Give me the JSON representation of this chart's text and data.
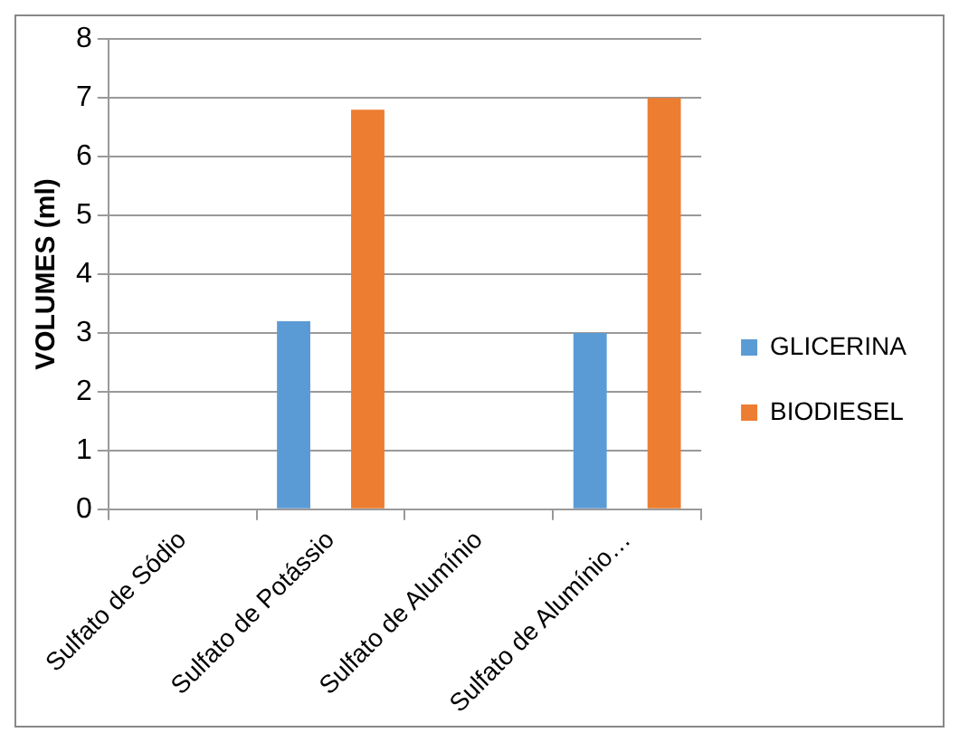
{
  "chart_data": {
    "type": "bar",
    "ylabel": "VOLUMES (ml)",
    "categories": [
      "Sulfato de Sódio",
      "Sulfato de Potássio",
      "Sulfato de Alumínio",
      "Sulfato de Alumínio…"
    ],
    "series": [
      {
        "name": "GLICERINA",
        "color": "#5b9bd5",
        "values": [
          null,
          3.2,
          null,
          3
        ]
      },
      {
        "name": "BIODIESEL",
        "color": "#ed7d31",
        "values": [
          null,
          6.8,
          null,
          7
        ]
      }
    ],
    "ylim": [
      0,
      8
    ],
    "yticks": [
      0,
      1,
      2,
      3,
      4,
      5,
      6,
      7,
      8
    ],
    "grid": "y",
    "legend": "right"
  }
}
